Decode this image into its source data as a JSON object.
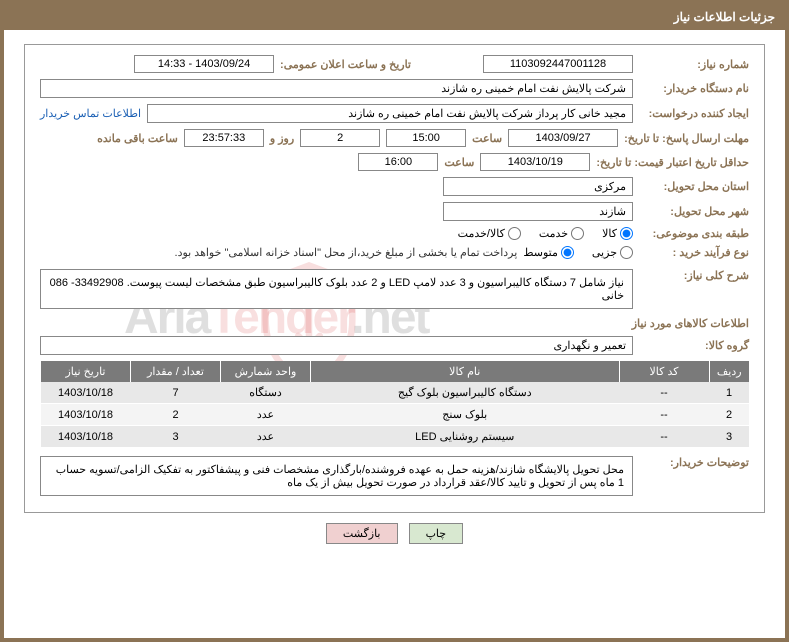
{
  "header": {
    "title": "جزئیات اطلاعات نیاز"
  },
  "fields": {
    "need_number_label": "شماره نیاز:",
    "need_number": "1103092447001128",
    "announce_label": "تاریخ و ساعت اعلان عمومی:",
    "announce_value": "1403/09/24 - 14:33",
    "buyer_org_label": "نام دستگاه خریدار:",
    "buyer_org": "شرکت پالایش نفت امام خمینی  ره  شازند",
    "requester_label": "ایجاد کننده درخواست:",
    "requester": "مجید خانی کار پرداز شرکت پالایش نفت امام خمینی  ره  شازند",
    "contact_link": "اطلاعات تماس خریدار",
    "deadline_label": "مهلت ارسال پاسخ: تا تاریخ:",
    "deadline_date": "1403/09/27",
    "time_label": "ساعت",
    "deadline_time": "15:00",
    "days": "2",
    "days_suffix": "روز و",
    "countdown": "23:57:33",
    "remain_suffix": "ساعت باقی مانده",
    "validity_label": "حداقل تاریخ اعتبار قیمت: تا تاریخ:",
    "validity_date": "1403/10/19",
    "validity_time": "16:00",
    "province_label": "استان محل تحویل:",
    "province": "مرکزی",
    "city_label": "شهر محل تحویل:",
    "city": "شازند",
    "category_label": "طبقه بندی موضوعی:",
    "radio_goods": "کالا",
    "radio_service": "خدمت",
    "radio_both": "کالا/خدمت",
    "purchase_type_label": "نوع فرآیند خرید :",
    "radio_minor": "جزیی",
    "radio_medium": "متوسط",
    "purchase_note": "پرداخت تمام یا بخشی از مبلغ خرید،از محل \"اسناد خزانه اسلامی\" خواهد بود.",
    "summary_label": "شرح کلی نیاز:",
    "summary": "نیاز شامل 7 دستگاه کالیبراسیون و 3 عدد لامپ LED  و 2 عدد بلوک کالیبراسیون طبق مشخصات لیست پیوست. 33492908- 086 خانی",
    "items_section": "اطلاعات کالاهای مورد نیاز",
    "group_label": "گروه کالا:",
    "group_value": "تعمیر و نگهداری",
    "buyer_notes_label": "توضیحات خریدار:",
    "buyer_notes": "محل تحویل پالایشگاه شازند/هزینه حمل به عهده فروشنده/بارگذاری مشخصات فنی و پیشفاکتور به تفکیک الزامی/تسویه حساب 1 ماه پس از تحویل و تایید کالا/عقد قرارداد در صورت تحویل بیش از یک ماه"
  },
  "table": {
    "headers": {
      "row": "ردیف",
      "code": "کد کالا",
      "name": "نام کالا",
      "unit": "واحد شمارش",
      "qty": "تعداد / مقدار",
      "date": "تاریخ نیاز"
    },
    "rows": [
      {
        "n": "1",
        "code": "--",
        "name": "دستگاه کالیبراسیون بلوک گیج",
        "unit": "دستگاه",
        "qty": "7",
        "date": "1403/10/18"
      },
      {
        "n": "2",
        "code": "--",
        "name": "بلوک سنج",
        "unit": "عدد",
        "qty": "2",
        "date": "1403/10/18"
      },
      {
        "n": "3",
        "code": "--",
        "name": "سیستم روشنایی LED",
        "unit": "عدد",
        "qty": "3",
        "date": "1403/10/18"
      }
    ]
  },
  "buttons": {
    "print": "چاپ",
    "back": "بازگشت"
  },
  "watermark": {
    "t1": "Aria",
    "t2": "Tender",
    "t3": ".net"
  },
  "colors": {
    "brand": "#8b7355"
  }
}
